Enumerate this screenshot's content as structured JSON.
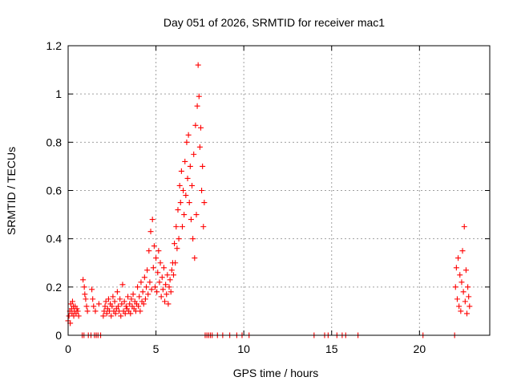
{
  "chart_data": {
    "type": "scatter",
    "title": "Day 051 of 2026, SRMTID for receiver mac1",
    "xlabel": "GPS time / hours",
    "ylabel": "SRMTID / TECUs",
    "xlim": [
      0,
      24
    ],
    "ylim": [
      0,
      1.2
    ],
    "xticks": [
      0,
      5,
      10,
      15,
      20
    ],
    "xtick_labels": [
      "0",
      "5",
      "10",
      "15",
      "20"
    ],
    "yticks": [
      0,
      0.2,
      0.4,
      0.6,
      0.8,
      1,
      1.2
    ],
    "ytick_labels": [
      "0",
      "0.2",
      "0.4",
      "0.6",
      "0.8",
      "1",
      "1.2"
    ],
    "grid": true,
    "marker": "+",
    "color": "#ff0000",
    "series": [
      {
        "name": "SRMTID",
        "points": [
          [
            0.0,
            0.06
          ],
          [
            0.05,
            0.08
          ],
          [
            0.1,
            0.1
          ],
          [
            0.12,
            0.05
          ],
          [
            0.15,
            0.13
          ],
          [
            0.2,
            0.11
          ],
          [
            0.22,
            0.09
          ],
          [
            0.25,
            0.14
          ],
          [
            0.3,
            0.12
          ],
          [
            0.32,
            0.08
          ],
          [
            0.35,
            0.1
          ],
          [
            0.4,
            0.12
          ],
          [
            0.45,
            0.09
          ],
          [
            0.5,
            0.11
          ],
          [
            0.55,
            0.1
          ],
          [
            0.6,
            0.08
          ],
          [
            0.8,
            0.0
          ],
          [
            0.85,
            0.23
          ],
          [
            0.9,
            0.0
          ],
          [
            0.92,
            0.2
          ],
          [
            0.95,
            0.17
          ],
          [
            1.0,
            0.15
          ],
          [
            1.05,
            0.12
          ],
          [
            1.1,
            0.1
          ],
          [
            1.15,
            0.0
          ],
          [
            1.3,
            0.0
          ],
          [
            1.35,
            0.19
          ],
          [
            1.4,
            0.15
          ],
          [
            1.45,
            0.12
          ],
          [
            1.5,
            0.0
          ],
          [
            1.55,
            0.1
          ],
          [
            1.6,
            0.0
          ],
          [
            1.7,
            0.0
          ],
          [
            1.75,
            0.13
          ],
          [
            1.85,
            0.0
          ],
          [
            2.0,
            0.08
          ],
          [
            2.05,
            0.1
          ],
          [
            2.1,
            0.12
          ],
          [
            2.15,
            0.14
          ],
          [
            2.2,
            0.09
          ],
          [
            2.25,
            0.11
          ],
          [
            2.3,
            0.15
          ],
          [
            2.35,
            0.1
          ],
          [
            2.4,
            0.13
          ],
          [
            2.45,
            0.08
          ],
          [
            2.5,
            0.12
          ],
          [
            2.55,
            0.16
          ],
          [
            2.6,
            0.1
          ],
          [
            2.65,
            0.14
          ],
          [
            2.7,
            0.09
          ],
          [
            2.75,
            0.11
          ],
          [
            2.8,
            0.18
          ],
          [
            2.85,
            0.12
          ],
          [
            2.9,
            0.1
          ],
          [
            2.95,
            0.15
          ],
          [
            3.0,
            0.08
          ],
          [
            3.05,
            0.13
          ],
          [
            3.1,
            0.21
          ],
          [
            3.15,
            0.1
          ],
          [
            3.2,
            0.14
          ],
          [
            3.25,
            0.09
          ],
          [
            3.3,
            0.12
          ],
          [
            3.35,
            0.11
          ],
          [
            3.4,
            0.16
          ],
          [
            3.45,
            0.1
          ],
          [
            3.5,
            0.13
          ],
          [
            3.55,
            0.09
          ],
          [
            3.6,
            0.15
          ],
          [
            3.65,
            0.12
          ],
          [
            3.7,
            0.17
          ],
          [
            3.75,
            0.11
          ],
          [
            3.8,
            0.14
          ],
          [
            3.85,
            0.1
          ],
          [
            3.9,
            0.13
          ],
          [
            3.95,
            0.2
          ],
          [
            4.0,
            0.12
          ],
          [
            4.05,
            0.16
          ],
          [
            4.1,
            0.1
          ],
          [
            4.15,
            0.22
          ],
          [
            4.2,
            0.14
          ],
          [
            4.25,
            0.18
          ],
          [
            4.3,
            0.13
          ],
          [
            4.35,
            0.24
          ],
          [
            4.4,
            0.15
          ],
          [
            4.45,
            0.2
          ],
          [
            4.5,
            0.27
          ],
          [
            4.55,
            0.17
          ],
          [
            4.6,
            0.35
          ],
          [
            4.65,
            0.22
          ],
          [
            4.7,
            0.43
          ],
          [
            4.75,
            0.19
          ],
          [
            4.8,
            0.48
          ],
          [
            4.85,
            0.28
          ],
          [
            4.9,
            0.37
          ],
          [
            4.95,
            0.2
          ],
          [
            5.0,
            0.32
          ],
          [
            5.05,
            0.18
          ],
          [
            5.1,
            0.26
          ],
          [
            5.15,
            0.35
          ],
          [
            5.2,
            0.22
          ],
          [
            5.25,
            0.3
          ],
          [
            5.3,
            0.16
          ],
          [
            5.35,
            0.24
          ],
          [
            5.4,
            0.19
          ],
          [
            5.45,
            0.28
          ],
          [
            5.5,
            0.14
          ],
          [
            5.55,
            0.21
          ],
          [
            5.6,
            0.17
          ],
          [
            5.65,
            0.25
          ],
          [
            5.7,
            0.13
          ],
          [
            5.75,
            0.2
          ],
          [
            5.8,
            0.23
          ],
          [
            5.85,
            0.18
          ],
          [
            5.9,
            0.27
          ],
          [
            5.95,
            0.3
          ],
          [
            6.0,
            0.25
          ],
          [
            6.05,
            0.38
          ],
          [
            6.1,
            0.3
          ],
          [
            6.15,
            0.45
          ],
          [
            6.2,
            0.36
          ],
          [
            6.25,
            0.52
          ],
          [
            6.3,
            0.4
          ],
          [
            6.35,
            0.62
          ],
          [
            6.4,
            0.55
          ],
          [
            6.45,
            0.68
          ],
          [
            6.5,
            0.45
          ],
          [
            6.55,
            0.6
          ],
          [
            6.6,
            0.5
          ],
          [
            6.65,
            0.72
          ],
          [
            6.7,
            0.58
          ],
          [
            6.75,
            0.8
          ],
          [
            6.8,
            0.65
          ],
          [
            6.85,
            0.83
          ],
          [
            6.9,
            0.55
          ],
          [
            6.95,
            0.7
          ],
          [
            7.0,
            0.48
          ],
          [
            7.05,
            0.62
          ],
          [
            7.1,
            0.4
          ],
          [
            7.15,
            0.75
          ],
          [
            7.2,
            0.32
          ],
          [
            7.25,
            0.87
          ],
          [
            7.3,
            0.5
          ],
          [
            7.35,
            0.95
          ],
          [
            7.4,
            1.12
          ],
          [
            7.45,
            0.99
          ],
          [
            7.5,
            0.78
          ],
          [
            7.55,
            0.86
          ],
          [
            7.6,
            0.6
          ],
          [
            7.65,
            0.7
          ],
          [
            7.7,
            0.45
          ],
          [
            7.75,
            0.55
          ],
          [
            7.8,
            0.0
          ],
          [
            7.9,
            0.0
          ],
          [
            8.0,
            0.0
          ],
          [
            8.1,
            0.0
          ],
          [
            8.2,
            0.0
          ],
          [
            8.5,
            0.0
          ],
          [
            8.8,
            0.0
          ],
          [
            9.2,
            0.0
          ],
          [
            9.6,
            0.0
          ],
          [
            9.9,
            0.0
          ],
          [
            10.3,
            0.0
          ],
          [
            14.0,
            0.0
          ],
          [
            14.6,
            0.0
          ],
          [
            14.8,
            0.0
          ],
          [
            15.3,
            0.0
          ],
          [
            15.6,
            0.0
          ],
          [
            15.8,
            0.0
          ],
          [
            16.5,
            0.0
          ],
          [
            20.2,
            0.0
          ],
          [
            22.0,
            0.0
          ],
          [
            22.05,
            0.2
          ],
          [
            22.1,
            0.28
          ],
          [
            22.15,
            0.15
          ],
          [
            22.2,
            0.32
          ],
          [
            22.25,
            0.12
          ],
          [
            22.3,
            0.25
          ],
          [
            22.35,
            0.1
          ],
          [
            22.4,
            0.22
          ],
          [
            22.45,
            0.35
          ],
          [
            22.5,
            0.18
          ],
          [
            22.55,
            0.45
          ],
          [
            22.6,
            0.14
          ],
          [
            22.65,
            0.27
          ],
          [
            22.7,
            0.09
          ],
          [
            22.75,
            0.2
          ],
          [
            22.8,
            0.16
          ],
          [
            22.85,
            0.12
          ]
        ]
      }
    ]
  }
}
